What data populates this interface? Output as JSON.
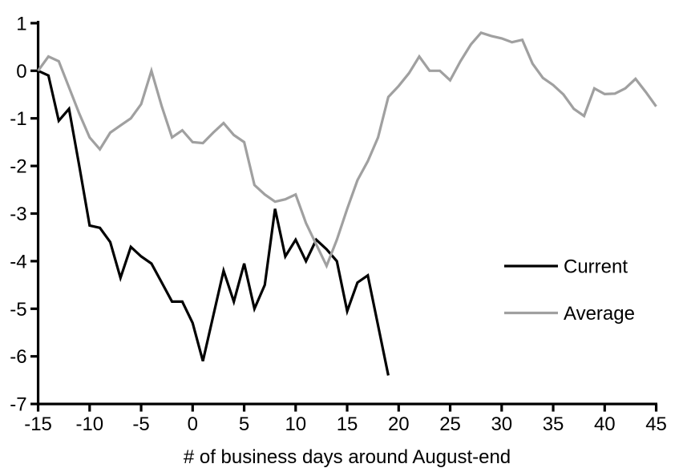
{
  "chart_data": {
    "type": "line",
    "title": "",
    "xlabel": "# of business days around August-end",
    "ylabel": "",
    "xlim": [
      -15,
      45
    ],
    "ylim": [
      -7,
      1
    ],
    "x_ticks": [
      -15,
      -10,
      -5,
      0,
      5,
      10,
      15,
      20,
      25,
      30,
      35,
      40,
      45
    ],
    "y_ticks": [
      1,
      0,
      -1,
      -2,
      -3,
      -4,
      -5,
      -6,
      -7
    ],
    "grid": false,
    "legend_position": "right-middle",
    "series": [
      {
        "name": "Current",
        "color": "#000000",
        "x": [
          -15,
          -14,
          -13,
          -12,
          -11,
          -10,
          -9,
          -8,
          -7,
          -6,
          -5,
          -4,
          -3,
          -2,
          -1,
          0,
          1,
          2,
          3,
          4,
          5,
          6,
          7,
          8,
          9,
          10,
          11,
          12,
          13,
          14,
          15,
          16,
          17,
          18,
          19
        ],
        "values": [
          0,
          -0.1,
          -1.05,
          -0.8,
          -2.0,
          -3.25,
          -3.3,
          -3.6,
          -4.35,
          -3.7,
          -3.9,
          -4.05,
          -4.45,
          -4.85,
          -4.85,
          -5.3,
          -6.1,
          -5.15,
          -4.2,
          -4.85,
          -4.05,
          -5.0,
          -4.5,
          -2.9,
          -3.9,
          -3.55,
          -4.0,
          -3.55,
          -3.75,
          -4.0,
          -5.05,
          -4.45,
          -4.3,
          -5.35,
          -6.4
        ]
      },
      {
        "name": "Average",
        "color": "#a0a0a0",
        "x": [
          -15,
          -14,
          -13,
          -12,
          -11,
          -10,
          -9,
          -8,
          -7,
          -6,
          -5,
          -4,
          -3,
          -2,
          -1,
          0,
          1,
          2,
          3,
          4,
          5,
          6,
          7,
          8,
          9,
          10,
          11,
          12,
          13,
          14,
          15,
          16,
          17,
          18,
          19,
          20,
          21,
          22,
          23,
          24,
          25,
          26,
          27,
          28,
          29,
          30,
          31,
          32,
          33,
          34,
          35,
          36,
          37,
          38,
          39,
          40,
          41,
          42,
          43,
          44,
          45
        ],
        "values": [
          0,
          0.3,
          0.2,
          -0.35,
          -0.9,
          -1.4,
          -1.65,
          -1.3,
          -1.15,
          -1.0,
          -0.7,
          0.0,
          -0.75,
          -1.4,
          -1.25,
          -1.5,
          -1.52,
          -1.3,
          -1.1,
          -1.35,
          -1.5,
          -2.4,
          -2.6,
          -2.75,
          -2.7,
          -2.6,
          -3.2,
          -3.65,
          -4.1,
          -3.55,
          -2.9,
          -2.3,
          -1.9,
          -1.4,
          -0.55,
          -0.32,
          -0.05,
          0.3,
          0.0,
          0.0,
          -0.2,
          0.2,
          0.55,
          0.8,
          0.73,
          0.68,
          0.6,
          0.65,
          0.15,
          -0.15,
          -0.3,
          -0.5,
          -0.8,
          -0.95,
          -0.37,
          -0.49,
          -0.48,
          -0.37,
          -0.17,
          -0.45,
          -0.75
        ]
      }
    ]
  },
  "legend": {
    "items": [
      {
        "label": "Current",
        "color": "#000000"
      },
      {
        "label": "Average",
        "color": "#a0a0a0"
      }
    ]
  },
  "colors": {
    "axis": "#000000",
    "background": "#ffffff"
  }
}
